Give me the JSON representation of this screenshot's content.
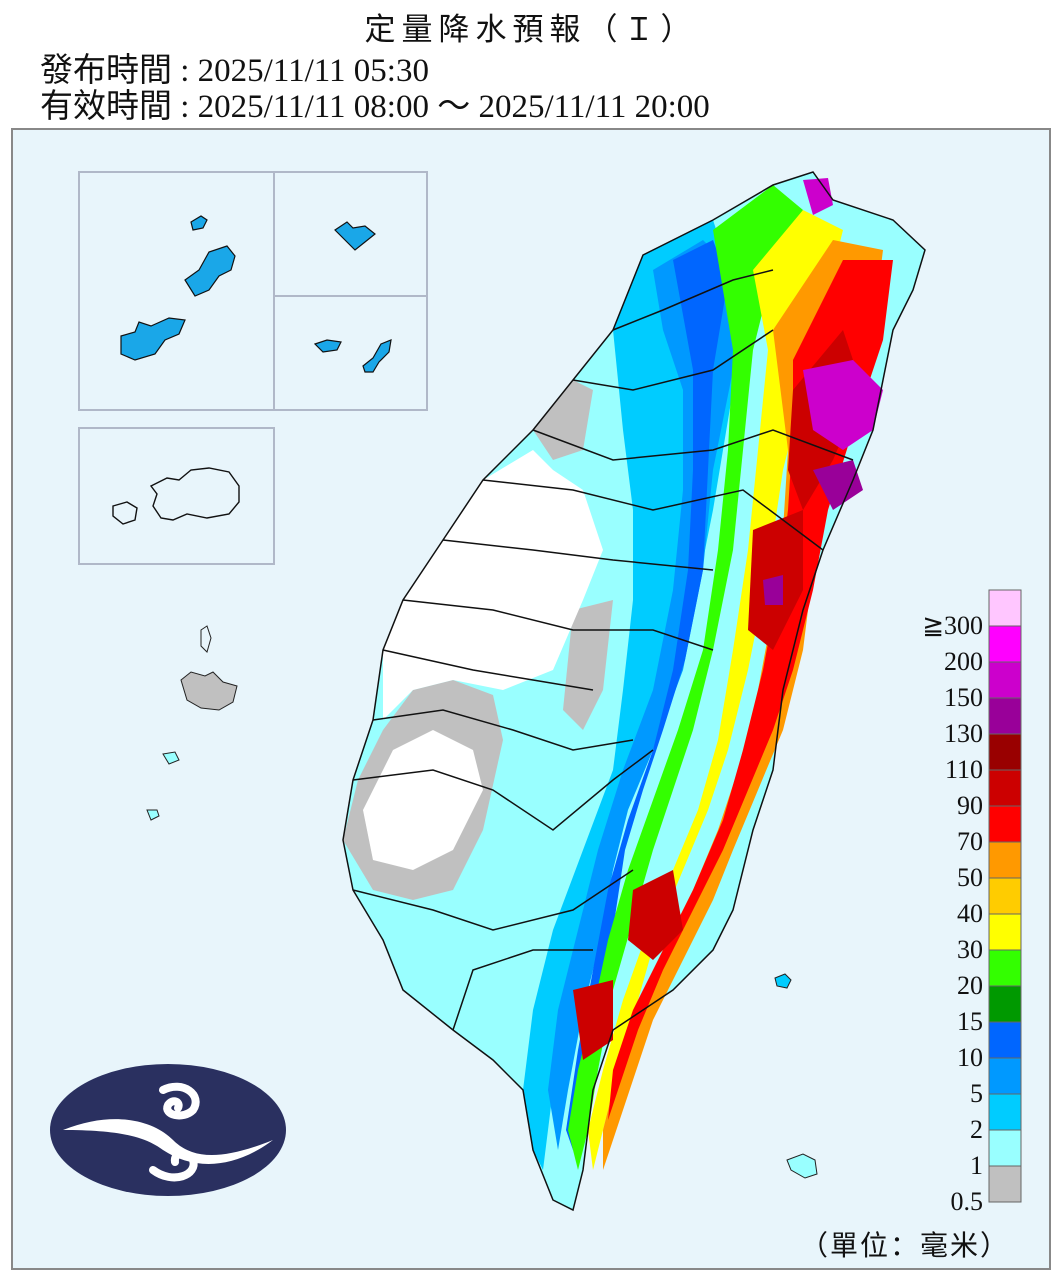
{
  "header": {
    "title": "定量降水預報（Ｉ）",
    "issue_time": "發布時間 : 2025/11/11 05:30",
    "valid_time": "有效時間 : 2025/11/11 08:00 ～ 2025/11/11 20:00"
  },
  "legend": {
    "items": [
      {
        "label": "≧300",
        "color": "#ffc6ff"
      },
      {
        "label": "200",
        "color": "#ff00ff"
      },
      {
        "label": "150",
        "color": "#cc00cc"
      },
      {
        "label": "130",
        "color": "#990099"
      },
      {
        "label": "110",
        "color": "#990000"
      },
      {
        "label": "90",
        "color": "#cc0000"
      },
      {
        "label": "70",
        "color": "#ff0000"
      },
      {
        "label": "50",
        "color": "#ff9900"
      },
      {
        "label": "40",
        "color": "#ffcc00"
      },
      {
        "label": "30",
        "color": "#ffff00"
      },
      {
        "label": "20",
        "color": "#33ff00"
      },
      {
        "label": "15",
        "color": "#009900"
      },
      {
        "label": "10",
        "color": "#0066ff"
      },
      {
        "label": "5",
        "color": "#0099ff"
      },
      {
        "label": "2",
        "color": "#00ccff"
      },
      {
        "label": "1",
        "color": "#99ffff"
      },
      {
        "label": "0.5",
        "color": "#c0c0c0"
      }
    ],
    "unit": "（單位：毫米）"
  },
  "map": {
    "background": "#e8f5fb",
    "region": "Taiwan",
    "inset_regions": [
      "Matsu",
      "Kinmen"
    ],
    "logo": "cwa-logo"
  }
}
